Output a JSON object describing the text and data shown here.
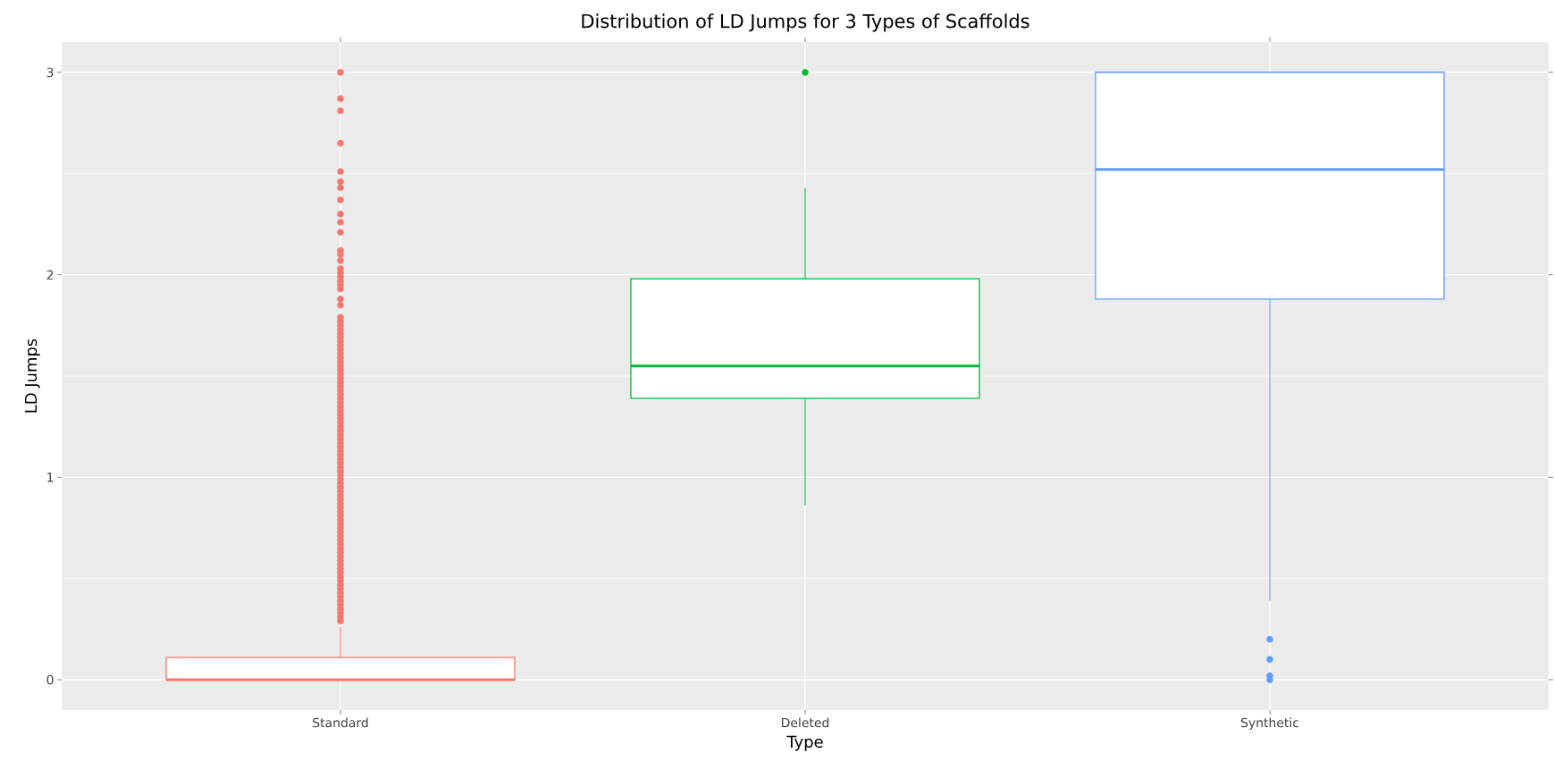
{
  "chart_data": {
    "type": "box",
    "title": "Distribution of LD Jumps for 3 Types of Scaffolds",
    "xlabel": "Type",
    "ylabel": "LD Jumps",
    "categories": [
      "Standard",
      "Deleted",
      "Synthetic"
    ],
    "colors": [
      "#f8766d",
      "#00ba38",
      "#619cff"
    ],
    "boxes": [
      {
        "low": 0,
        "q1": 0,
        "median": 0,
        "q3": 0.11,
        "high": 0.26,
        "outliers": [
          3.0,
          2.87,
          2.81,
          2.65,
          2.51,
          2.46,
          2.43,
          2.37,
          2.3,
          2.26,
          2.21,
          2.12,
          2.1,
          2.07,
          2.03,
          2.01,
          1.99,
          1.97,
          1.95,
          1.93,
          1.88,
          1.85,
          1.79,
          1.77,
          1.75,
          1.73,
          1.71,
          1.69,
          1.67,
          1.65,
          1.63,
          1.61,
          1.59,
          1.57,
          1.55,
          1.53,
          1.51,
          1.49,
          1.47,
          1.45,
          1.43,
          1.41,
          1.39,
          1.37,
          1.35,
          1.33,
          1.31,
          1.29,
          1.27,
          1.25,
          1.23,
          1.21,
          1.19,
          1.17,
          1.15,
          1.13,
          1.11,
          1.09,
          1.07,
          1.05,
          1.03,
          1.01,
          0.99,
          0.97,
          0.95,
          0.93,
          0.91,
          0.89,
          0.87,
          0.85,
          0.83,
          0.81,
          0.79,
          0.77,
          0.75,
          0.73,
          0.71,
          0.69,
          0.67,
          0.65,
          0.63,
          0.61,
          0.59,
          0.57,
          0.55,
          0.53,
          0.51,
          0.49,
          0.47,
          0.45,
          0.43,
          0.41,
          0.39,
          0.37,
          0.35,
          0.33,
          0.31,
          0.29
        ]
      },
      {
        "low": 0.86,
        "q1": 1.39,
        "median": 1.55,
        "q3": 1.98,
        "high": 2.43,
        "outliers": [
          3.0
        ]
      },
      {
        "low": 0.39,
        "q1": 1.88,
        "median": 2.52,
        "q3": 3.0,
        "high": 3.0,
        "outliers": [
          0.2,
          0.1,
          0.02,
          0.0
        ]
      }
    ],
    "ylim": [
      -0.15,
      3.15
    ],
    "yticks": [
      0,
      1,
      2,
      3
    ],
    "grid": true
  }
}
